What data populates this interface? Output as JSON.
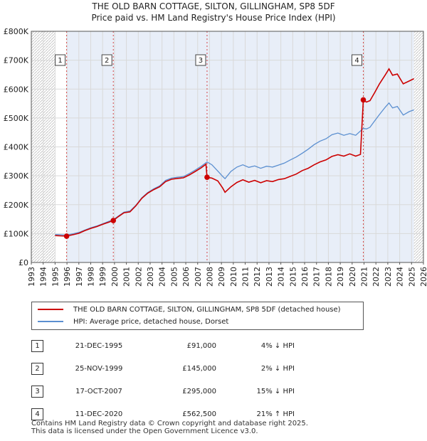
{
  "chart_data": {
    "type": "line",
    "title": "THE OLD BARN COTTAGE, SILTON, GILLINGHAM, SP8 5DF",
    "subtitle": "Price paid vs. HM Land Registry's House Price Index (HPI)",
    "xlim": [
      1993,
      2026
    ],
    "ylim": [
      0,
      800000
    ],
    "x_ticks": [
      "1993",
      "1994",
      "1995",
      "1996",
      "1997",
      "1998",
      "1999",
      "2000",
      "2001",
      "2002",
      "2003",
      "2004",
      "2005",
      "2006",
      "2007",
      "2008",
      "2009",
      "2010",
      "2011",
      "2012",
      "2013",
      "2014",
      "2015",
      "2016",
      "2017",
      "2018",
      "2019",
      "2020",
      "2021",
      "2022",
      "2023",
      "2024",
      "2025",
      "2026"
    ],
    "y_ticks": [
      {
        "value": 0,
        "label": "£0"
      },
      {
        "value": 100000,
        "label": "£100K"
      },
      {
        "value": 200000,
        "label": "£200K"
      },
      {
        "value": 300000,
        "label": "£300K"
      },
      {
        "value": 400000,
        "label": "£400K"
      },
      {
        "value": 500000,
        "label": "£500K"
      },
      {
        "value": 600000,
        "label": "£600K"
      },
      {
        "value": 700000,
        "label": "£700K"
      },
      {
        "value": 800000,
        "label": "£800K"
      }
    ],
    "hatched_ranges": [
      [
        1993,
        1995.0
      ],
      [
        2025.2,
        2026
      ]
    ],
    "series": [
      {
        "name": "THE OLD BARN COTTAGE, SILTON, GILLINGHAM, SP8 5DF (detached house)",
        "color": "#cc0000",
        "points": [
          [
            1995.0,
            93000
          ],
          [
            1995.97,
            91000
          ],
          [
            1996.5,
            96000
          ],
          [
            1997.0,
            101000
          ],
          [
            1997.5,
            110000
          ],
          [
            1998.0,
            118000
          ],
          [
            1998.5,
            124000
          ],
          [
            1999.0,
            132000
          ],
          [
            1999.5,
            139000
          ],
          [
            1999.9,
            145000
          ],
          [
            2000.3,
            158000
          ],
          [
            2000.8,
            172000
          ],
          [
            2001.3,
            175000
          ],
          [
            2001.8,
            196000
          ],
          [
            2002.3,
            222000
          ],
          [
            2002.8,
            240000
          ],
          [
            2003.3,
            252000
          ],
          [
            2003.8,
            262000
          ],
          [
            2004.3,
            280000
          ],
          [
            2004.8,
            288000
          ],
          [
            2005.3,
            291000
          ],
          [
            2005.8,
            293000
          ],
          [
            2006.3,
            303000
          ],
          [
            2006.8,
            315000
          ],
          [
            2007.3,
            328000
          ],
          [
            2007.7,
            340000
          ],
          [
            2007.79,
            295000
          ],
          [
            2008.2,
            292000
          ],
          [
            2008.7,
            282000
          ],
          [
            2009.1,
            258000
          ],
          [
            2009.3,
            243000
          ],
          [
            2009.8,
            262000
          ],
          [
            2010.3,
            277000
          ],
          [
            2010.8,
            286000
          ],
          [
            2011.3,
            278000
          ],
          [
            2011.8,
            284000
          ],
          [
            2012.3,
            276000
          ],
          [
            2012.8,
            283000
          ],
          [
            2013.3,
            280000
          ],
          [
            2013.8,
            287000
          ],
          [
            2014.3,
            290000
          ],
          [
            2014.8,
            298000
          ],
          [
            2015.3,
            306000
          ],
          [
            2015.8,
            318000
          ],
          [
            2016.3,
            326000
          ],
          [
            2016.8,
            338000
          ],
          [
            2017.3,
            348000
          ],
          [
            2017.8,
            355000
          ],
          [
            2018.3,
            367000
          ],
          [
            2018.8,
            373000
          ],
          [
            2019.3,
            368000
          ],
          [
            2019.8,
            376000
          ],
          [
            2020.3,
            368000
          ],
          [
            2020.7,
            374000
          ],
          [
            2020.94,
            562500
          ],
          [
            2021.2,
            555000
          ],
          [
            2021.5,
            560000
          ],
          [
            2021.9,
            588000
          ],
          [
            2022.3,
            618000
          ],
          [
            2022.8,
            650000
          ],
          [
            2023.1,
            670000
          ],
          [
            2023.4,
            648000
          ],
          [
            2023.8,
            652000
          ],
          [
            2024.3,
            618000
          ],
          [
            2024.8,
            628000
          ],
          [
            2025.2,
            636000
          ]
        ]
      },
      {
        "name": "HPI: Average price, detached house, Dorset",
        "color": "#5b8fd0",
        "points": [
          [
            1995.0,
            97000
          ],
          [
            1995.97,
            95000
          ],
          [
            1996.5,
            99000
          ],
          [
            1997.0,
            104000
          ],
          [
            1997.5,
            112000
          ],
          [
            1998.0,
            120000
          ],
          [
            1998.5,
            126000
          ],
          [
            1999.0,
            134000
          ],
          [
            1999.5,
            142000
          ],
          [
            1999.9,
            148000
          ],
          [
            2000.3,
            160000
          ],
          [
            2000.8,
            174000
          ],
          [
            2001.3,
            178000
          ],
          [
            2001.8,
            198000
          ],
          [
            2002.3,
            224000
          ],
          [
            2002.8,
            242000
          ],
          [
            2003.3,
            255000
          ],
          [
            2003.8,
            265000
          ],
          [
            2004.3,
            284000
          ],
          [
            2004.8,
            292000
          ],
          [
            2005.3,
            295000
          ],
          [
            2005.8,
            297000
          ],
          [
            2006.3,
            308000
          ],
          [
            2006.8,
            320000
          ],
          [
            2007.3,
            333000
          ],
          [
            2007.79,
            348000
          ],
          [
            2008.2,
            338000
          ],
          [
            2008.7,
            316000
          ],
          [
            2009.1,
            298000
          ],
          [
            2009.3,
            290000
          ],
          [
            2009.8,
            315000
          ],
          [
            2010.3,
            330000
          ],
          [
            2010.8,
            338000
          ],
          [
            2011.3,
            329000
          ],
          [
            2011.8,
            334000
          ],
          [
            2012.3,
            326000
          ],
          [
            2012.8,
            333000
          ],
          [
            2013.3,
            330000
          ],
          [
            2013.8,
            337000
          ],
          [
            2014.3,
            344000
          ],
          [
            2014.8,
            355000
          ],
          [
            2015.3,
            365000
          ],
          [
            2015.8,
            378000
          ],
          [
            2016.3,
            392000
          ],
          [
            2016.8,
            408000
          ],
          [
            2017.3,
            420000
          ],
          [
            2017.8,
            428000
          ],
          [
            2018.3,
            442000
          ],
          [
            2018.8,
            448000
          ],
          [
            2019.3,
            440000
          ],
          [
            2019.8,
            446000
          ],
          [
            2020.3,
            440000
          ],
          [
            2020.94,
            464000
          ],
          [
            2021.2,
            462000
          ],
          [
            2021.5,
            468000
          ],
          [
            2021.9,
            490000
          ],
          [
            2022.3,
            512000
          ],
          [
            2022.8,
            538000
          ],
          [
            2023.1,
            552000
          ],
          [
            2023.4,
            535000
          ],
          [
            2023.8,
            540000
          ],
          [
            2024.3,
            510000
          ],
          [
            2024.8,
            522000
          ],
          [
            2025.2,
            528000
          ]
        ]
      }
    ],
    "sales": [
      {
        "n": "1",
        "year": 1995.97,
        "price": 91000
      },
      {
        "n": "2",
        "year": 1999.9,
        "price": 145000
      },
      {
        "n": "3",
        "year": 2007.79,
        "price": 295000
      },
      {
        "n": "4",
        "year": 2020.94,
        "price": 562500
      }
    ]
  },
  "legend": {
    "property": "THE OLD BARN COTTAGE, SILTON, GILLINGHAM, SP8 5DF (detached house)",
    "hpi": "HPI: Average price, detached house, Dorset"
  },
  "table": [
    {
      "n": "1",
      "date": "21-DEC-1995",
      "price": "£91,000",
      "hpi": "4% ↓ HPI"
    },
    {
      "n": "2",
      "date": "25-NOV-1999",
      "price": "£145,000",
      "hpi": "2% ↓ HPI"
    },
    {
      "n": "3",
      "date": "17-OCT-2007",
      "price": "£295,000",
      "hpi": "15% ↓ HPI"
    },
    {
      "n": "4",
      "date": "11-DEC-2020",
      "price": "£562,500",
      "hpi": "21% ↑ HPI"
    }
  ],
  "footer": {
    "line1": "Contains HM Land Registry data © Crown copyright and database right 2025.",
    "line2": "This data is licensed under the Open Government Licence v3.0."
  }
}
